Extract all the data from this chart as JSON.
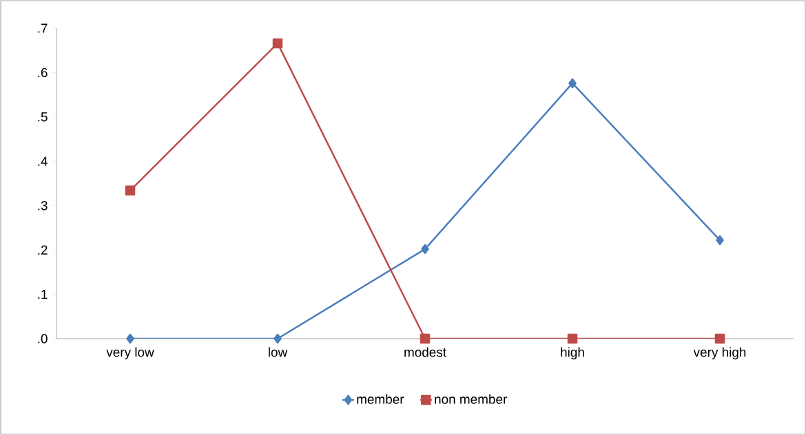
{
  "chart_data": {
    "type": "line",
    "categories": [
      "very low",
      "low",
      "modest",
      "high",
      "very high"
    ],
    "series": [
      {
        "name": "member",
        "color": "#4a7ebb",
        "marker": "diamond",
        "values": [
          0,
          0,
          0.202,
          0.576,
          0.222
        ]
      },
      {
        "name": "non member",
        "color": "#be4b48",
        "marker": "square",
        "values": [
          0.334,
          0.666,
          0,
          0,
          0
        ]
      }
    ],
    "ylim": [
      0,
      0.7
    ],
    "yticks": [
      {
        "value": 0,
        "label": ".0"
      },
      {
        "value": 0.1,
        "label": ".1"
      },
      {
        "value": 0.2,
        "label": ".2"
      },
      {
        "value": 0.3,
        "label": ".3"
      },
      {
        "value": 0.4,
        "label": ".4"
      },
      {
        "value": 0.5,
        "label": ".5"
      },
      {
        "value": 0.6,
        "label": ".6"
      },
      {
        "value": 0.7,
        "label": ".7"
      }
    ],
    "legend": "bottom",
    "grid": false,
    "line_style": "solid"
  }
}
